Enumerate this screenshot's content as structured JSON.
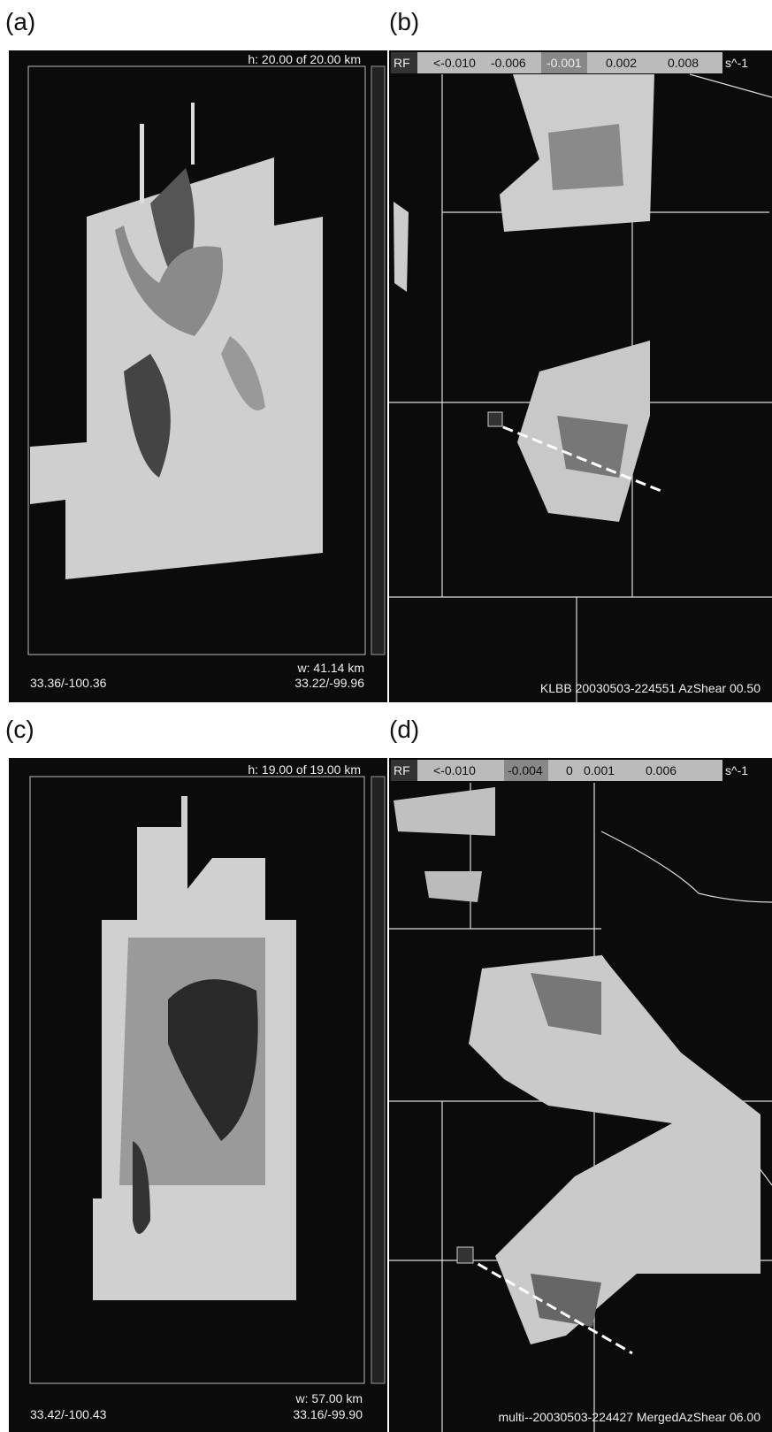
{
  "panels": [
    {
      "label": "(a)",
      "header": "h:  20.00 of  20.00 km",
      "width": "w:  41.14 km",
      "coord_left": "33.36/-100.36",
      "coord_right": "33.22/-99.96"
    },
    {
      "label": "(b)",
      "legend": {
        "prefix": "RF",
        "items": [
          "<-0.010",
          "-0.006",
          "-0.001",
          "0.002",
          "0.008"
        ],
        "unit": "s^-1"
      },
      "caption": "KLBB  20030503-224551 AzShear 00.50"
    },
    {
      "label": "(c)",
      "header": "h:  19.00 of  19.00 km",
      "width": "w:  57.00 km",
      "coord_left": "33.42/-100.43",
      "coord_right": "33.16/-99.90"
    },
    {
      "label": "(d)",
      "legend": {
        "prefix": "RF",
        "items": [
          "<-0.010",
          "-0.004",
          "0",
          "0.001",
          "0.006"
        ],
        "unit": "s^-1"
      },
      "caption": "multi--20030503-224427 MergedAzShear 06.00"
    }
  ]
}
